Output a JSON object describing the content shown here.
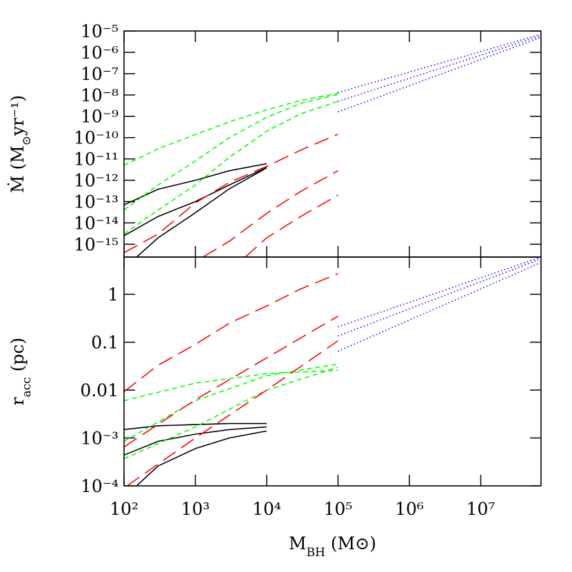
{
  "chart_data": [
    {
      "type": "line",
      "xscale": "log",
      "yscale": "log",
      "ylabel": {
        "main": "Ṁ  (M",
        "sub": "⊙",
        "tail": "yr⁻¹)"
      },
      "xlim": [
        100,
        70000000
      ],
      "ylim": [
        2.5e-16,
        1e-05
      ],
      "yticks": [
        {
          "value": 1e-05,
          "label": "10⁻⁵"
        },
        {
          "value": 1e-06,
          "label": "10⁻⁶"
        },
        {
          "value": 1e-07,
          "label": "10⁻⁷"
        },
        {
          "value": 1e-08,
          "label": "10⁻⁸"
        },
        {
          "value": 1e-09,
          "label": "10⁻⁹"
        },
        {
          "value": 1e-10,
          "label": "10⁻¹⁰"
        },
        {
          "value": 1e-11,
          "label": "10⁻¹¹"
        },
        {
          "value": 1e-12,
          "label": "10⁻¹²"
        },
        {
          "value": 1e-13,
          "label": "10⁻¹³"
        },
        {
          "value": 1e-14,
          "label": "10⁻¹⁴"
        },
        {
          "value": 1e-15,
          "label": "10⁻¹⁵"
        }
      ],
      "series": [
        {
          "color": "#000000",
          "style": "solid",
          "x": [
            100,
            300,
            1000,
            3000,
            10000
          ],
          "values": [
            7e-14,
            3.8e-13,
            1e-12,
            2.8e-12,
            6e-12
          ]
        },
        {
          "color": "#000000",
          "style": "solid",
          "x": [
            100,
            300,
            1000,
            3000,
            10000
          ],
          "values": [
            2.5e-15,
            2e-14,
            1e-13,
            6e-13,
            4e-12
          ]
        },
        {
          "color": "#000000",
          "style": "solid",
          "x": [
            150,
            300,
            1000,
            3000,
            10000
          ],
          "values": [
            2.5e-16,
            2e-15,
            3e-14,
            4e-13,
            3.8e-12
          ]
        },
        {
          "color": "#00ff00",
          "style": "dashed",
          "x": [
            100,
            300,
            1000,
            3000,
            10000,
            30000,
            100000
          ],
          "values": [
            5e-12,
            3e-11,
            1.4e-10,
            5.5e-10,
            2e-09,
            5.5e-09,
            1.2e-08
          ]
        },
        {
          "color": "#00ff00",
          "style": "dashed",
          "x": [
            100,
            300,
            1000,
            3000,
            10000,
            30000,
            100000
          ],
          "values": [
            4e-14,
            6e-13,
            8e-12,
            1e-10,
            9e-10,
            4e-09,
            1.07e-08
          ]
        },
        {
          "color": "#00ff00",
          "style": "dashed",
          "x": [
            100,
            300,
            1000,
            3000,
            10000,
            30000,
            100000
          ],
          "values": [
            3e-15,
            4e-14,
            6e-13,
            1.2e-11,
            2e-10,
            1.3e-09,
            5e-09
          ]
        },
        {
          "color": "#ff0000",
          "style": "longdash",
          "x": [
            100,
            300,
            1000,
            3000,
            10000,
            30000,
            100000
          ],
          "values": [
            4e-16,
            3e-15,
            8.7e-14,
            8e-13,
            4.5e-12,
            2.6e-11,
            1.45e-10
          ]
        },
        {
          "color": "#ff0000",
          "style": "longdash",
          "x": [
            1300,
            3000,
            10000,
            30000,
            100000
          ],
          "values": [
            2.6e-16,
            1.4e-15,
            2.8e-14,
            3e-13,
            2.8e-12
          ]
        },
        {
          "color": "#ff0000",
          "style": "longdash",
          "x": [
            5000,
            10000,
            30000,
            100000
          ],
          "values": [
            2.5e-16,
            2e-15,
            2e-14,
            2e-13
          ]
        },
        {
          "color": "#0000ff",
          "style": "dotted",
          "x": [
            100000,
            70000000
          ],
          "values": [
            1.3e-08,
            7e-06
          ]
        },
        {
          "color": "#0000ff",
          "style": "dotted",
          "x": [
            100000,
            70000000
          ],
          "values": [
            5e-09,
            6e-06
          ]
        },
        {
          "color": "#0000ff",
          "style": "dotted",
          "x": [
            100000,
            70000000
          ],
          "values": [
            1.6e-09,
            5e-06
          ]
        }
      ]
    },
    {
      "type": "line",
      "xscale": "log",
      "yscale": "log",
      "xlabel": {
        "main": "M",
        "sub": "BH",
        "tail": " (M⊙)"
      },
      "ylabel": {
        "main": "r",
        "sub": "acc",
        "tail": "  (pc)"
      },
      "xlim": [
        100,
        70000000
      ],
      "ylim": [
        0.0001,
        6
      ],
      "xticks": [
        {
          "value": 100,
          "label": "10²"
        },
        {
          "value": 1000,
          "label": "10³"
        },
        {
          "value": 10000,
          "label": "10⁴"
        },
        {
          "value": 100000,
          "label": "10⁵"
        },
        {
          "value": 1000000,
          "label": "10⁶"
        },
        {
          "value": 10000000,
          "label": "10⁷"
        }
      ],
      "yticks": [
        {
          "value": 0.0001,
          "label": "10⁻⁴"
        },
        {
          "value": 0.001,
          "label": "10⁻³"
        },
        0.01,
        0.1,
        1
      ],
      "series": [
        {
          "color": "#000000",
          "style": "solid",
          "x": [
            100,
            300,
            1000,
            3000,
            10000
          ],
          "values": [
            0.0015,
            0.0018,
            0.0019,
            0.002,
            0.002
          ]
        },
        {
          "color": "#000000",
          "style": "solid",
          "x": [
            100,
            300,
            1000,
            3000,
            10000
          ],
          "values": [
            0.00044,
            0.00085,
            0.0012,
            0.0015,
            0.0017
          ]
        },
        {
          "color": "#000000",
          "style": "solid",
          "x": [
            150,
            300,
            1000,
            3000,
            10000
          ],
          "values": [
            0.0001,
            0.00026,
            0.0006,
            0.001,
            0.0014
          ]
        },
        {
          "color": "#00ff00",
          "style": "dashed",
          "x": [
            100,
            1000,
            10000,
            100000
          ],
          "values": [
            0.006,
            0.014,
            0.022,
            0.026
          ]
        },
        {
          "color": "#00ff00",
          "style": "dashed",
          "x": [
            100,
            1000,
            10000,
            100000
          ],
          "values": [
            0.00085,
            0.006,
            0.02,
            0.035
          ]
        },
        {
          "color": "#00ff00",
          "style": "dashed",
          "x": [
            100,
            1000,
            10000,
            100000
          ],
          "values": [
            0.00037,
            0.0017,
            0.01,
            0.03
          ]
        },
        {
          "color": "#ff0000",
          "style": "longdash",
          "x": [
            100,
            300,
            1000,
            3000,
            10000,
            30000,
            100000
          ],
          "values": [
            0.0093,
            0.033,
            0.09,
            0.25,
            0.57,
            1.3,
            2.7
          ]
        },
        {
          "color": "#ff0000",
          "style": "longdash",
          "x": [
            100,
            1000,
            10000,
            100000
          ],
          "values": [
            0.00065,
            0.0063,
            0.047,
            0.35
          ]
        },
        {
          "color": "#ff0000",
          "style": "longdash",
          "x": [
            110,
            1000,
            10000,
            100000
          ],
          "values": [
            0.0001,
            0.001,
            0.01,
            0.107
          ]
        },
        {
          "color": "#0000ff",
          "style": "dotted",
          "x": [
            100000,
            70000000
          ],
          "values": [
            0.21,
            6
          ]
        },
        {
          "color": "#0000ff",
          "style": "dotted",
          "x": [
            100000,
            70000000
          ],
          "values": [
            0.135,
            5.5
          ]
        },
        {
          "color": "#0000ff",
          "style": "dotted",
          "x": [
            100000,
            70000000
          ],
          "values": [
            0.065,
            4.6
          ]
        }
      ]
    }
  ]
}
